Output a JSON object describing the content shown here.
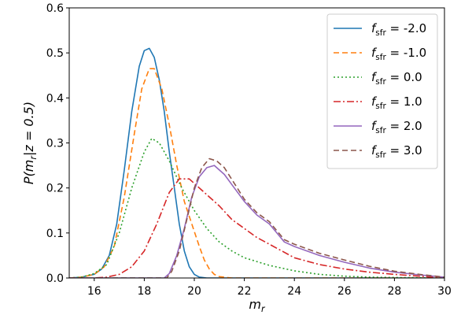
{
  "chart_data": {
    "type": "line",
    "xlabel": "m_r",
    "ylabel": "P(m_r|z = 0.5)",
    "xlim": [
      15,
      30
    ],
    "ylim": [
      0.0,
      0.6
    ],
    "xticks": [
      16,
      18,
      20,
      22,
      24,
      26,
      28,
      30
    ],
    "yticks": [
      0.0,
      0.1,
      0.2,
      0.3,
      0.4,
      0.5,
      0.6
    ],
    "grid": false,
    "legend_position": "top-right",
    "series": [
      {
        "name": "f_sfr = -2.0",
        "color": "#1f77b4",
        "dash": "solid",
        "x": [
          15.0,
          15.5,
          16.0,
          16.3,
          16.6,
          16.9,
          17.2,
          17.5,
          17.8,
          18.0,
          18.2,
          18.4,
          18.6,
          18.8,
          19.0,
          19.2,
          19.4,
          19.6,
          19.8,
          20.0,
          20.2,
          20.5,
          21.0,
          30.0
        ],
        "y": [
          0.0,
          0.002,
          0.008,
          0.02,
          0.05,
          0.12,
          0.24,
          0.37,
          0.47,
          0.505,
          0.51,
          0.49,
          0.44,
          0.37,
          0.28,
          0.2,
          0.12,
          0.06,
          0.025,
          0.008,
          0.002,
          0.0,
          0.0,
          0.0
        ]
      },
      {
        "name": "f_sfr = -1.0",
        "color": "#ff7f0e",
        "dash": "dashed",
        "x": [
          15.0,
          15.5,
          16.0,
          16.4,
          16.8,
          17.2,
          17.6,
          17.9,
          18.2,
          18.4,
          18.7,
          19.0,
          19.3,
          19.6,
          19.9,
          20.2,
          20.4,
          20.6,
          20.8,
          21.0,
          21.5,
          30.0
        ],
        "y": [
          0.0,
          0.002,
          0.008,
          0.025,
          0.07,
          0.18,
          0.32,
          0.42,
          0.465,
          0.465,
          0.42,
          0.34,
          0.25,
          0.17,
          0.12,
          0.07,
          0.04,
          0.02,
          0.008,
          0.003,
          0.0,
          0.0
        ]
      },
      {
        "name": "f_sfr = 0.0",
        "color": "#2ca02c",
        "dash": "dotted",
        "x": [
          15.0,
          15.5,
          16.0,
          16.5,
          17.0,
          17.5,
          18.0,
          18.3,
          18.6,
          19.0,
          19.5,
          20.0,
          20.5,
          21.0,
          21.5,
          22.0,
          23.0,
          24.0,
          25.0,
          26.0,
          27.0,
          28.0,
          30.0
        ],
        "y": [
          0.0,
          0.002,
          0.01,
          0.03,
          0.1,
          0.2,
          0.28,
          0.31,
          0.3,
          0.26,
          0.2,
          0.15,
          0.11,
          0.08,
          0.06,
          0.045,
          0.028,
          0.016,
          0.008,
          0.004,
          0.002,
          0.001,
          0.0
        ]
      },
      {
        "name": "f_sfr = 1.0",
        "color": "#d62728",
        "dash": "dashdot",
        "x": [
          15.0,
          16.0,
          16.5,
          17.0,
          17.5,
          18.0,
          18.5,
          19.0,
          19.4,
          19.8,
          20.2,
          20.6,
          21.0,
          21.5,
          22.0,
          22.5,
          23.0,
          23.5,
          24.0,
          25.0,
          26.0,
          27.0,
          28.0,
          29.0,
          30.0
        ],
        "y": [
          0.0,
          0.0,
          0.002,
          0.008,
          0.025,
          0.06,
          0.12,
          0.19,
          0.22,
          0.22,
          0.2,
          0.18,
          0.16,
          0.13,
          0.11,
          0.09,
          0.075,
          0.06,
          0.045,
          0.03,
          0.02,
          0.013,
          0.008,
          0.004,
          0.0
        ]
      },
      {
        "name": "f_sfr = 2.0",
        "color": "#9467bd",
        "dash": "solid",
        "x": [
          15.0,
          18.8,
          19.0,
          19.3,
          19.6,
          19.9,
          20.2,
          20.5,
          20.8,
          21.2,
          21.6,
          22.0,
          22.5,
          23.0,
          23.3,
          23.6,
          24.0,
          25.0,
          26.0,
          27.0,
          28.0,
          29.0,
          30.0
        ],
        "y": [
          0.0,
          0.0,
          0.01,
          0.05,
          0.11,
          0.18,
          0.225,
          0.245,
          0.25,
          0.23,
          0.2,
          0.17,
          0.14,
          0.12,
          0.1,
          0.08,
          0.07,
          0.05,
          0.035,
          0.022,
          0.013,
          0.007,
          0.002
        ]
      },
      {
        "name": "f_sfr = 3.0",
        "color": "#8c564b",
        "dash": "dashed",
        "x": [
          15.0,
          18.9,
          19.1,
          19.4,
          19.7,
          20.0,
          20.3,
          20.6,
          20.9,
          21.2,
          21.6,
          22.0,
          22.5,
          23.0,
          23.3,
          23.6,
          24.0,
          25.0,
          26.0,
          27.0,
          28.0,
          29.0,
          30.0
        ],
        "y": [
          0.0,
          0.0,
          0.015,
          0.06,
          0.13,
          0.2,
          0.245,
          0.265,
          0.26,
          0.245,
          0.21,
          0.175,
          0.145,
          0.125,
          0.105,
          0.085,
          0.075,
          0.055,
          0.04,
          0.026,
          0.015,
          0.008,
          0.002
        ]
      }
    ]
  }
}
